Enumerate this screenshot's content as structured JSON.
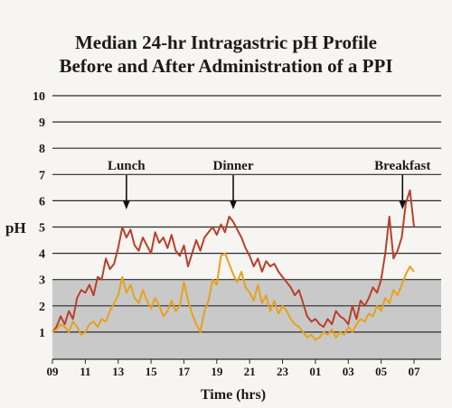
{
  "title_lines": [
    "Median 24-hr Intragastric pH Profile",
    "Before and After Administration of a PPI"
  ],
  "chart_data": {
    "type": "line",
    "xlabel": "Time (hrs)",
    "ylabel": "pH",
    "x_tick_labels": [
      "09",
      "11",
      "13",
      "15",
      "17",
      "19",
      "21",
      "23",
      "01",
      "03",
      "05",
      "07"
    ],
    "ylim": [
      0,
      10
    ],
    "y_ticks": [
      1,
      2,
      3,
      4,
      5,
      6,
      7,
      8,
      9,
      10
    ],
    "grid": "horizontal",
    "shaded_band": [
      0,
      3
    ],
    "annotations": [
      {
        "label": "Lunch",
        "x": 13.5
      },
      {
        "label": "Dinner",
        "x": 20.0
      },
      {
        "label": "Breakfast",
        "x": 30.3
      }
    ],
    "colors": {
      "red_series": "#b8402a",
      "orange_series": "#e6a21e",
      "shade": "#c9c9c9",
      "gridline": "#2a2a2a"
    },
    "x": [
      9.0,
      9.25,
      9.5,
      9.75,
      10.0,
      10.25,
      10.5,
      10.75,
      11.0,
      11.25,
      11.5,
      11.75,
      12.0,
      12.25,
      12.5,
      12.75,
      13.0,
      13.25,
      13.5,
      13.75,
      14.0,
      14.25,
      14.5,
      14.75,
      15.0,
      15.25,
      15.5,
      15.75,
      16.0,
      16.25,
      16.5,
      16.75,
      17.0,
      17.25,
      17.5,
      17.75,
      18.0,
      18.25,
      18.5,
      18.75,
      19.0,
      19.25,
      19.5,
      19.75,
      20.0,
      20.25,
      20.5,
      20.75,
      21.0,
      21.25,
      21.5,
      21.75,
      22.0,
      22.25,
      22.5,
      22.75,
      23.0,
      23.25,
      23.5,
      23.75,
      24.0,
      24.25,
      24.5,
      24.75,
      25.0,
      25.25,
      25.5,
      25.75,
      26.0,
      26.25,
      26.5,
      26.75,
      27.0,
      27.25,
      27.5,
      27.75,
      28.0,
      28.25,
      28.5,
      28.75,
      29.0,
      29.25,
      29.5,
      29.75,
      30.0,
      30.25,
      30.5,
      30.75,
      31.0
    ],
    "series": [
      {
        "values": [
          1.0,
          1.2,
          1.6,
          1.3,
          1.8,
          1.5,
          2.3,
          2.6,
          2.5,
          2.8,
          2.4,
          3.1,
          3.0,
          3.8,
          3.4,
          3.6,
          4.2,
          5.0,
          4.6,
          4.9,
          4.3,
          4.1,
          4.6,
          4.3,
          4.0,
          4.8,
          4.4,
          4.6,
          4.2,
          4.7,
          4.1,
          3.9,
          4.3,
          3.5,
          4.0,
          4.5,
          4.1,
          4.6,
          4.8,
          5.0,
          4.7,
          5.1,
          4.8,
          5.4,
          5.2,
          4.9,
          4.6,
          4.2,
          3.9,
          3.5,
          3.8,
          3.3,
          3.7,
          3.5,
          3.6,
          3.3,
          3.1,
          2.9,
          2.7,
          2.4,
          2.6,
          2.1,
          1.6,
          1.4,
          1.5,
          1.3,
          1.2,
          1.5,
          1.3,
          1.8,
          1.6,
          1.5,
          1.3,
          2.0,
          1.5,
          2.2,
          2.0,
          2.3,
          2.7,
          2.5,
          3.0,
          4.0,
          5.4,
          3.8,
          4.1,
          4.6,
          5.9,
          6.4,
          5.0
        ]
      },
      {
        "values": [
          1.0,
          1.1,
          1.3,
          1.2,
          1.0,
          1.4,
          1.2,
          0.9,
          1.0,
          1.3,
          1.4,
          1.2,
          1.5,
          1.4,
          1.8,
          2.1,
          2.4,
          3.1,
          2.5,
          2.8,
          2.3,
          2.1,
          2.6,
          2.2,
          1.9,
          2.3,
          2.0,
          1.6,
          1.8,
          2.2,
          1.8,
          2.0,
          2.9,
          2.2,
          1.7,
          1.3,
          1.0,
          1.8,
          2.2,
          3.0,
          2.8,
          3.9,
          4.0,
          3.6,
          3.2,
          2.9,
          3.3,
          2.7,
          2.5,
          2.2,
          2.8,
          2.1,
          2.4,
          1.8,
          2.2,
          1.7,
          2.0,
          1.8,
          1.5,
          1.3,
          1.2,
          1.0,
          0.8,
          0.9,
          0.7,
          0.8,
          1.0,
          0.9,
          1.1,
          0.8,
          1.0,
          0.9,
          1.2,
          1.0,
          1.3,
          1.5,
          1.4,
          1.7,
          1.6,
          2.0,
          1.8,
          2.3,
          2.1,
          2.6,
          2.4,
          2.8,
          3.2,
          3.5,
          3.3
        ]
      }
    ]
  }
}
